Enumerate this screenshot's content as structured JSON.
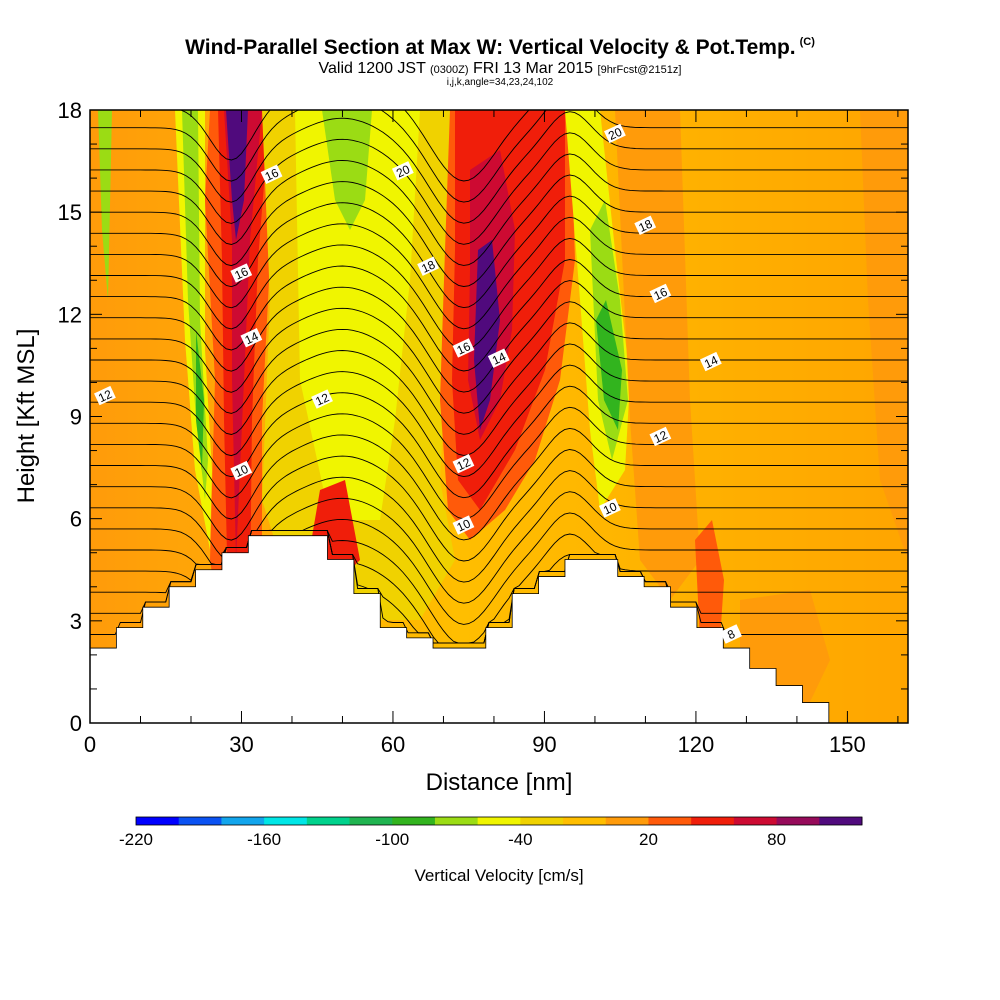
{
  "title": {
    "main": "Wind-Parallel Section at Max W: Vertical Velocity & Pot.Temp.",
    "main_units": "(C)",
    "valid_prefix": "Valid 1200 JST",
    "valid_utc": "(0300Z)",
    "valid_date": "FRI 13 Mar 2015",
    "forecast": "[9hrFcst@2151z]",
    "indices": "i,j,k,angle=34,23,24,102"
  },
  "chart_data": {
    "type": "heatmap",
    "title": "Wind-Parallel Section at Max W: Vertical Velocity & Pot.Temp.",
    "xlabel": "Distance [nm]",
    "ylabel": "Height [Kft MSL]",
    "xlim": [
      0,
      162
    ],
    "ylim": [
      0,
      18
    ],
    "x_ticks": [
      "0",
      "30",
      "60",
      "90",
      "120",
      "150"
    ],
    "y_ticks": [
      "0",
      "3",
      "6",
      "9",
      "12",
      "15",
      "18"
    ],
    "colorbar": {
      "label": "Vertical Velocity [cm/s]",
      "tick_labels": [
        "-220",
        "-160",
        "-100",
        "-40",
        "20",
        "80"
      ],
      "bins": [
        -220,
        -200,
        -180,
        -160,
        -140,
        -120,
        -100,
        -80,
        -60,
        -40,
        -20,
        0,
        20,
        40,
        60,
        80,
        100,
        120
      ],
      "colors": [
        "#0000ff",
        "#0a52f2",
        "#12a5ec",
        "#00e6e6",
        "#00d28c",
        "#20b450",
        "#32b41e",
        "#9bdc14",
        "#f0f500",
        "#f0d200",
        "#ffbe00",
        "#ff9b0a",
        "#ff5a0a",
        "#f01e0a",
        "#cd0a32",
        "#960a5a",
        "#500a7d"
      ]
    },
    "theta_contour_labels": [
      {
        "x": 3,
        "y": 9.6,
        "text": "12"
      },
      {
        "x": 30,
        "y": 7.4,
        "text": "10"
      },
      {
        "x": 46,
        "y": 9.5,
        "text": "12"
      },
      {
        "x": 32,
        "y": 11.3,
        "text": "14"
      },
      {
        "x": 30,
        "y": 13.2,
        "text": "16"
      },
      {
        "x": 36,
        "y": 16.1,
        "text": "16"
      },
      {
        "x": 62,
        "y": 16.2,
        "text": "20"
      },
      {
        "x": 67,
        "y": 13.4,
        "text": "18"
      },
      {
        "x": 74,
        "y": 11.0,
        "text": "16"
      },
      {
        "x": 81,
        "y": 10.7,
        "text": "14"
      },
      {
        "x": 74,
        "y": 7.6,
        "text": "12"
      },
      {
        "x": 74,
        "y": 5.8,
        "text": "10"
      },
      {
        "x": 103,
        "y": 6.3,
        "text": "10"
      },
      {
        "x": 113,
        "y": 8.4,
        "text": "12"
      },
      {
        "x": 123,
        "y": 10.6,
        "text": "14"
      },
      {
        "x": 113,
        "y": 12.6,
        "text": "16"
      },
      {
        "x": 110,
        "y": 14.6,
        "text": "18"
      },
      {
        "x": 104,
        "y": 17.3,
        "text": "20"
      },
      {
        "x": 127,
        "y": 2.6,
        "text": "8"
      }
    ],
    "terrain_height_kft": [
      2.2,
      2.8,
      3.4,
      4.0,
      4.5,
      5.0,
      5.5,
      5.5,
      5.5,
      4.8,
      3.8,
      2.8,
      2.5,
      2.2,
      2.2,
      2.8,
      3.8,
      4.3,
      4.8,
      4.8,
      4.3,
      4.0,
      3.4,
      2.8,
      2.2,
      1.6,
      1.1,
      0.6,
      0.0,
      0.0,
      0.0
    ]
  },
  "colors": {
    "background_field": "#ffbe00",
    "updraft_max": "#500a7d",
    "downdraft": "#32b41e"
  }
}
